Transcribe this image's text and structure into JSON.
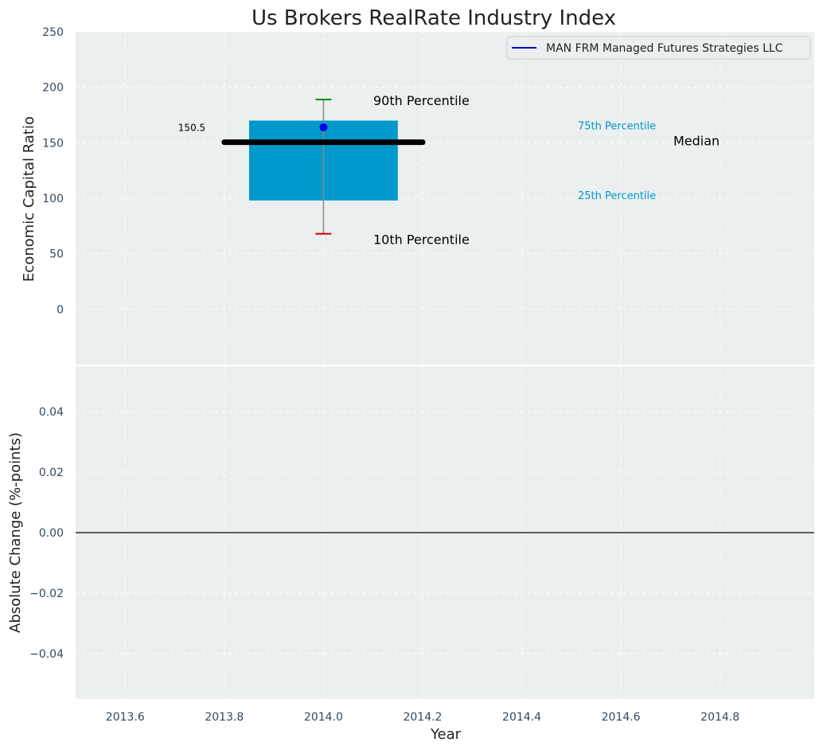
{
  "chart_data": {
    "type": "boxplot",
    "title": "Us Brokers RealRate Industry Index",
    "xlabel": "Year",
    "x_ticks": [
      "2013.6",
      "2013.8",
      "2014.0",
      "2014.2",
      "2014.4",
      "2014.6",
      "2014.8"
    ],
    "xlim": [
      2013.5,
      2014.99
    ],
    "grid": true,
    "legend": {
      "placement": "top-right",
      "entries": [
        {
          "label": "MAN FRM Managed Futures Strategies LLC",
          "color": "#0000cc"
        }
      ]
    },
    "top_panel": {
      "ylabel": "Economic Capital Ratio",
      "ylim": [
        -50,
        250
      ],
      "y_ticks": [
        "0",
        "50",
        "100",
        "150",
        "200",
        "250"
      ],
      "box": {
        "x": 2014.0,
        "x_from": 2013.85,
        "x_to": 2014.15,
        "p10": 68,
        "p25": 98,
        "median": 150.5,
        "p75": 170,
        "p90": 189,
        "color": "#0099cc"
      },
      "median_line": {
        "x_from": 2013.8,
        "x_to": 2014.2,
        "value": 150.5
      },
      "company_value": {
        "x": 2014.0,
        "y": 164,
        "color": "#0000ee"
      },
      "median_value_label": "150.5",
      "annotations": {
        "p90": "90th Percentile",
        "p75": "75th Percentile",
        "median": "Median",
        "p25": "25th Percentile",
        "p10": "10th Percentile"
      },
      "annotation_colors": {
        "p90": "#000000",
        "p75": "#0099cc",
        "median": "#000000",
        "p25": "#0099cc",
        "p10": "#000000"
      },
      "whisker_colors": {
        "upper": "#008800",
        "lower": "#cc0000"
      }
    },
    "bottom_panel": {
      "ylabel": "Absolute Change (%-points)",
      "ylim": [
        -0.055,
        0.055
      ],
      "y_ticks": [
        "0.04",
        "0.02",
        "0.00",
        "−0.02",
        "−0.04"
      ],
      "zero_line": 0
    }
  }
}
